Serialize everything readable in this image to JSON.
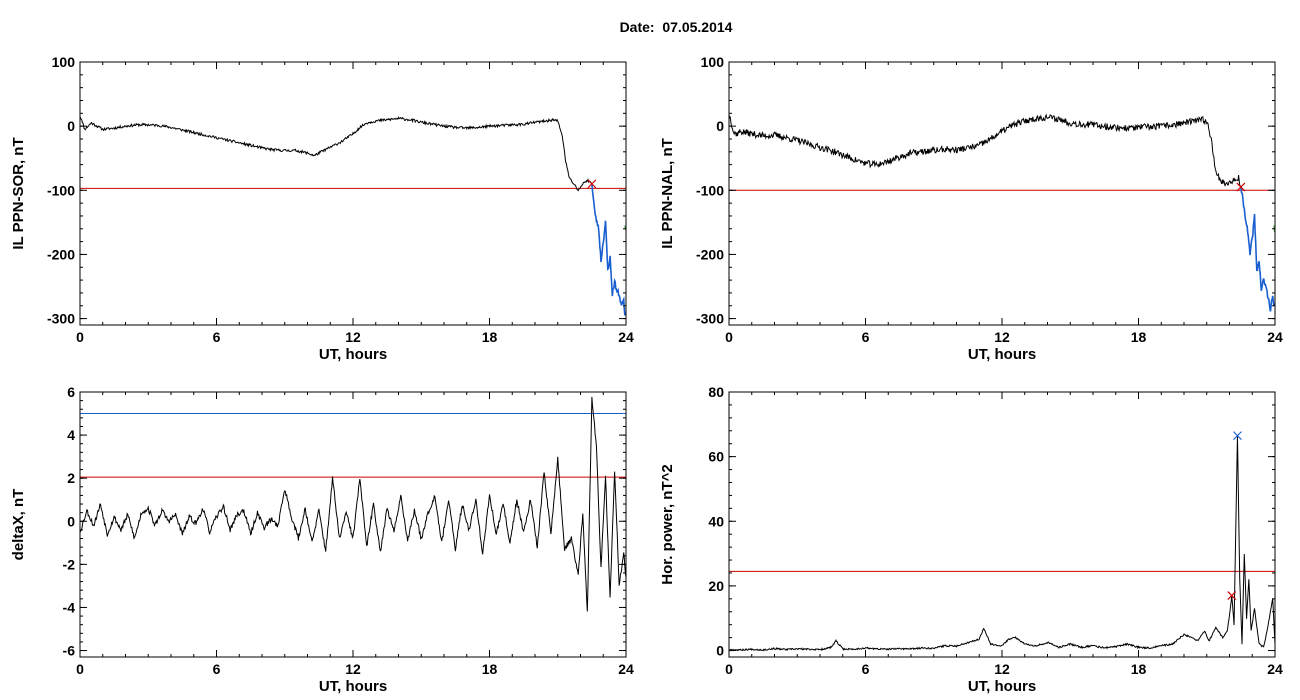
{
  "header": {
    "date_label": "Date:",
    "date_value": "07.05.2014"
  },
  "colors": {
    "axes": "#000000",
    "trace": "#000000",
    "threshold": "#cc0000",
    "highlight": "#1a5fd0",
    "extra": "#2f9a2f"
  },
  "chart_data": [
    {
      "type": "line",
      "title": "",
      "xlabel": "UT, hours",
      "ylabel": "IL PPN-SOR, nT",
      "xlim": [
        0,
        24
      ],
      "ylim": [
        -310,
        100
      ],
      "xticks": [
        0,
        6,
        12,
        18,
        24
      ],
      "yticks": [
        100,
        0,
        -100,
        -200,
        -300
      ],
      "grid": false,
      "threshold": {
        "y": -97,
        "color": "#cc0000"
      },
      "markers": [
        {
          "x": 22.5,
          "y": -90,
          "shape": "x",
          "color": "#cc0000"
        }
      ],
      "series": [
        {
          "color": "#000000",
          "noise": 2,
          "seed": 11,
          "x": [
            0,
            0.08,
            0.2,
            0.35,
            0.5,
            1,
            1.5,
            2,
            2.5,
            3,
            3.5,
            4,
            4.5,
            5,
            5.5,
            6,
            6.5,
            7,
            7.5,
            8,
            8.5,
            9,
            9.5,
            10,
            10.3,
            10.6,
            11,
            11.5,
            12,
            12.3,
            12.6,
            13,
            13.5,
            14,
            14.5,
            15,
            15.5,
            16,
            16.5,
            17,
            17.5,
            18,
            18.5,
            19,
            19.5,
            20,
            20.5,
            20.8,
            21,
            21.2,
            21.35,
            21.5,
            21.7,
            21.9,
            22.1,
            22.3,
            22.5
          ],
          "y": [
            15,
            10,
            -5,
            0,
            5,
            -5,
            -3,
            0,
            2,
            2,
            1,
            -2,
            -6,
            -10,
            -14,
            -18,
            -22,
            -26,
            -30,
            -34,
            -37,
            -38,
            -38,
            -42,
            -46,
            -40,
            -33,
            -24,
            -12,
            -2,
            5,
            8,
            10,
            12,
            10,
            6,
            3,
            0,
            -2,
            -3,
            -2,
            0,
            1,
            2,
            3,
            6,
            8,
            10,
            8,
            -15,
            -55,
            -80,
            -90,
            -100,
            -90,
            -84,
            -90
          ]
        },
        {
          "color": "#1a5fd0",
          "noise": 4,
          "seed": 23,
          "x": [
            22.5,
            22.65,
            22.8,
            22.9,
            23.0,
            23.1,
            23.2,
            23.3,
            23.4,
            23.5,
            23.6,
            23.7,
            23.8,
            23.9,
            23.95
          ],
          "y": [
            -90,
            -140,
            -160,
            -210,
            -180,
            -150,
            -225,
            -205,
            -262,
            -242,
            -258,
            -262,
            -280,
            -268,
            -295
          ]
        },
        {
          "color": "#2f9a2f",
          "noise": 0,
          "seed": 1,
          "x": [
            23.95,
            23.98
          ],
          "y": [
            -155,
            -162
          ]
        }
      ]
    },
    {
      "type": "line",
      "title": "",
      "xlabel": "UT, hours",
      "ylabel": "IL PPN-NAL, nT",
      "xlim": [
        0,
        24
      ],
      "ylim": [
        -310,
        100
      ],
      "xticks": [
        0,
        6,
        12,
        18,
        24
      ],
      "yticks": [
        100,
        0,
        -100,
        -200,
        -300
      ],
      "grid": false,
      "threshold": {
        "y": -100,
        "color": "#cc0000"
      },
      "markers": [
        {
          "x": 22.5,
          "y": -95,
          "shape": "x",
          "color": "#cc0000"
        }
      ],
      "series": [
        {
          "color": "#000000",
          "noise": 5,
          "seed": 37,
          "x": [
            0,
            0.08,
            0.2,
            0.35,
            0.5,
            1,
            1.5,
            2,
            2.5,
            3,
            3.5,
            4,
            4.5,
            5,
            5.5,
            6,
            6.5,
            7,
            7.5,
            8,
            8.5,
            9,
            9.5,
            10,
            10.5,
            11,
            11.5,
            12,
            12.5,
            13,
            13.5,
            14,
            14.5,
            15,
            15.5,
            16,
            16.5,
            17,
            17.5,
            18,
            18.5,
            19,
            19.5,
            20,
            20.5,
            20.8,
            21,
            21.2,
            21.4,
            21.6,
            21.8,
            22,
            22.2,
            22.4,
            22.5
          ],
          "y": [
            18,
            10,
            -10,
            -12,
            -8,
            -12,
            -15,
            -14,
            -18,
            -22,
            -28,
            -33,
            -38,
            -45,
            -52,
            -58,
            -60,
            -55,
            -48,
            -42,
            -40,
            -38,
            -36,
            -37,
            -34,
            -30,
            -20,
            -8,
            2,
            8,
            12,
            14,
            11,
            5,
            3,
            2,
            0,
            -2,
            -3,
            -2,
            -1,
            0,
            2,
            5,
            8,
            10,
            8,
            -20,
            -70,
            -85,
            -90,
            -88,
            -85,
            -80,
            -95
          ]
        },
        {
          "color": "#1a5fd0",
          "noise": 4,
          "seed": 41,
          "x": [
            22.5,
            22.65,
            22.8,
            22.9,
            23.0,
            23.1,
            23.2,
            23.3,
            23.4,
            23.5,
            23.6,
            23.7,
            23.8,
            23.9,
            23.95
          ],
          "y": [
            -95,
            -130,
            -165,
            -200,
            -175,
            -140,
            -225,
            -210,
            -255,
            -240,
            -250,
            -268,
            -285,
            -265,
            -280
          ]
        },
        {
          "color": "#2f9a2f",
          "noise": 0,
          "seed": 1,
          "x": [
            23.95,
            23.98
          ],
          "y": [
            -155,
            -165
          ]
        }
      ]
    },
    {
      "type": "line",
      "title": "",
      "xlabel": "UT, hours",
      "ylabel": "deltaX, nT",
      "xlim": [
        0,
        24
      ],
      "ylim": [
        -6.3,
        6
      ],
      "xticks": [
        0,
        6,
        12,
        18,
        24
      ],
      "yticks": [
        6,
        4,
        2,
        0,
        -2,
        -4,
        -6
      ],
      "grid": false,
      "thresholds": [
        {
          "y": 5,
          "color": "#1a5fd0"
        },
        {
          "y": 2.05,
          "color": "#cc0000"
        }
      ],
      "markers": [],
      "series": [
        {
          "color": "#000000",
          "noise": 0.12,
          "seed": 53,
          "x": [
            0,
            0.3,
            0.6,
            0.9,
            1.2,
            1.5,
            1.8,
            2.1,
            2.4,
            2.7,
            3,
            3.3,
            3.6,
            3.9,
            4.2,
            4.5,
            4.8,
            5.1,
            5.4,
            5.7,
            6,
            6.3,
            6.6,
            6.9,
            7.2,
            7.5,
            7.8,
            8.1,
            8.4,
            8.7,
            9,
            9.3,
            9.6,
            9.9,
            10.2,
            10.5,
            10.8,
            11.1,
            11.4,
            11.7,
            12,
            12.3,
            12.6,
            12.9,
            13.2,
            13.5,
            13.8,
            14.1,
            14.4,
            14.7,
            15,
            15.3,
            15.6,
            15.9,
            16.2,
            16.5,
            16.8,
            17.1,
            17.4,
            17.7,
            18,
            18.3,
            18.6,
            18.9,
            19.2,
            19.5,
            19.8,
            20.1,
            20.4,
            20.7,
            21,
            21.3,
            21.6,
            21.9,
            22.1,
            22.3,
            22.5,
            22.7,
            22.9,
            23.1,
            23.3,
            23.5,
            23.7,
            23.9,
            24
          ],
          "y": [
            -0.5,
            0.5,
            -0.2,
            0.8,
            -0.6,
            0.2,
            -0.4,
            0.3,
            -0.8,
            0.4,
            0.6,
            -0.2,
            0.5,
            0,
            0.3,
            -0.6,
            0.2,
            -0.1,
            0.6,
            -0.5,
            0.2,
            0.7,
            -0.4,
            0.3,
            0.5,
            -0.6,
            0.4,
            -0.3,
            0.1,
            -0.2,
            1.5,
            0.2,
            -0.8,
            0.6,
            -1,
            0.5,
            -1.4,
            2,
            -0.8,
            0.4,
            -0.8,
            2,
            -1.2,
            0.8,
            -1.4,
            0.6,
            -0.5,
            1.2,
            -0.9,
            0.5,
            -0.8,
            0.4,
            1.2,
            -1,
            1,
            -1.3,
            0.8,
            -0.4,
            1,
            -1.5,
            1.2,
            -0.6,
            0.8,
            -1,
            1,
            -0.5,
            1,
            -1.2,
            2.3,
            -0.6,
            2.9,
            -1.3,
            -0.8,
            -2.5,
            0.4,
            -4.3,
            5.7,
            3.5,
            -2.2,
            2.1,
            -3.6,
            2.3,
            -2.9,
            -1.5,
            -2.6
          ]
        }
      ]
    },
    {
      "type": "line",
      "title": "",
      "xlabel": "UT, hours",
      "ylabel": "Hor. power, nT^2",
      "xlim": [
        0,
        24
      ],
      "ylim": [
        -2,
        80
      ],
      "xticks": [
        0,
        6,
        12,
        18,
        24
      ],
      "yticks": [
        80,
        60,
        40,
        20,
        0
      ],
      "grid": false,
      "threshold": {
        "y": 24.5,
        "color": "#cc0000"
      },
      "markers": [
        {
          "x": 22.1,
          "y": 17,
          "shape": "x",
          "color": "#cc0000"
        },
        {
          "x": 22.35,
          "y": 66.5,
          "shape": "x",
          "color": "#1a5fd0"
        }
      ],
      "series": [
        {
          "color": "#000000",
          "noise": 0.25,
          "seed": 67,
          "x": [
            0,
            0.5,
            1,
            1.5,
            2,
            2.5,
            3,
            3.5,
            4,
            4.5,
            4.7,
            5,
            5.5,
            6,
            6.5,
            7,
            7.5,
            8,
            8.5,
            9,
            9.5,
            10,
            10.5,
            11,
            11.2,
            11.5,
            12,
            12.3,
            12.6,
            13,
            13.5,
            14,
            14.5,
            15,
            15.5,
            16,
            16.5,
            17,
            17.5,
            18,
            18.5,
            19,
            19.5,
            20,
            20.3,
            20.6,
            20.9,
            21.1,
            21.4,
            21.7,
            21.9,
            22,
            22.1,
            22.2,
            22.35,
            22.45,
            22.55,
            22.65,
            22.75,
            22.85,
            22.95,
            23.1,
            23.3,
            23.5,
            23.7,
            23.9,
            24
          ],
          "y": [
            0.3,
            0.2,
            0.4,
            0.2,
            0.6,
            0.3,
            0.5,
            0.4,
            0.3,
            1,
            3,
            0.5,
            0.4,
            0.8,
            0.5,
            0.4,
            0.6,
            0.5,
            0.8,
            0.7,
            1.5,
            1.4,
            2.5,
            3.5,
            7,
            2,
            1.5,
            3.5,
            4,
            2,
            1.5,
            2.5,
            1,
            2,
            1,
            1.5,
            0.8,
            1.2,
            2,
            1,
            0.8,
            1.5,
            2,
            5,
            4,
            3,
            6,
            3,
            7,
            4,
            6,
            11,
            17,
            8,
            66.5,
            22,
            2,
            30,
            10,
            22,
            6,
            13,
            2,
            1,
            8,
            16,
            2
          ]
        }
      ]
    }
  ]
}
